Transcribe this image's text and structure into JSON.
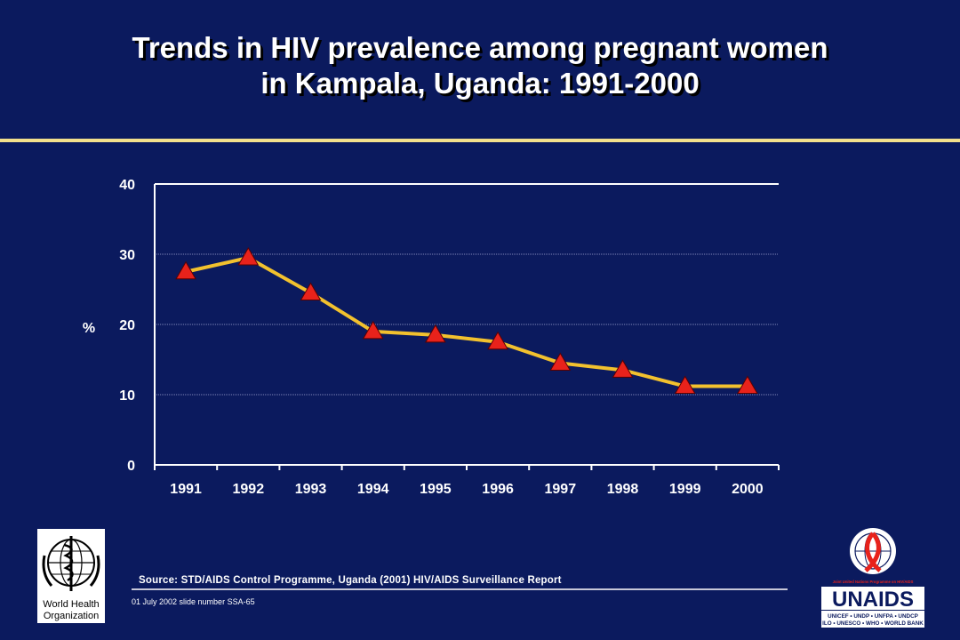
{
  "slide": {
    "title_line1": "Trends in HIV prevalence among pregnant women",
    "title_line2": "in Kampala, Uganda: 1991-2000",
    "source": "Source:  STD/AIDS Control Programme, Uganda (2001) HIV/AIDS Surveillance Report",
    "slide_number": "01 July 2002 slide number SSA-65"
  },
  "logos": {
    "who_line1": "World Health",
    "who_line2": "Organization",
    "unaids_tagline": "Joint United Nations Programme on HIV/AIDS",
    "unaids_name": "UNAIDS",
    "unaids_sponsors1": "UNICEF • UNDP • UNFPA • UNDCP",
    "unaids_sponsors2": "ILO • UNESCO • WHO • WORLD BANK"
  },
  "colors": {
    "background": "#0b1a5e",
    "line": "#f2c12e",
    "marker": "#e8221b",
    "accent_rule": "#f3e08c"
  },
  "chart_data": {
    "type": "line",
    "title": "Trends in HIV prevalence among pregnant women in Kampala, Uganda: 1991-2000",
    "xlabel": "",
    "ylabel": "%",
    "categories": [
      "1991",
      "1992",
      "1993",
      "1994",
      "1995",
      "1996",
      "1997",
      "1998",
      "1999",
      "2000"
    ],
    "series": [
      {
        "values": [
          27.5,
          29.5,
          24.5,
          19,
          18.5,
          17.5,
          14.5,
          13.5,
          11.2,
          11.2
        ]
      }
    ],
    "ylim": [
      0,
      40
    ],
    "yticks": [
      0,
      10,
      20,
      30,
      40
    ],
    "marker": "triangle",
    "grid": true
  }
}
